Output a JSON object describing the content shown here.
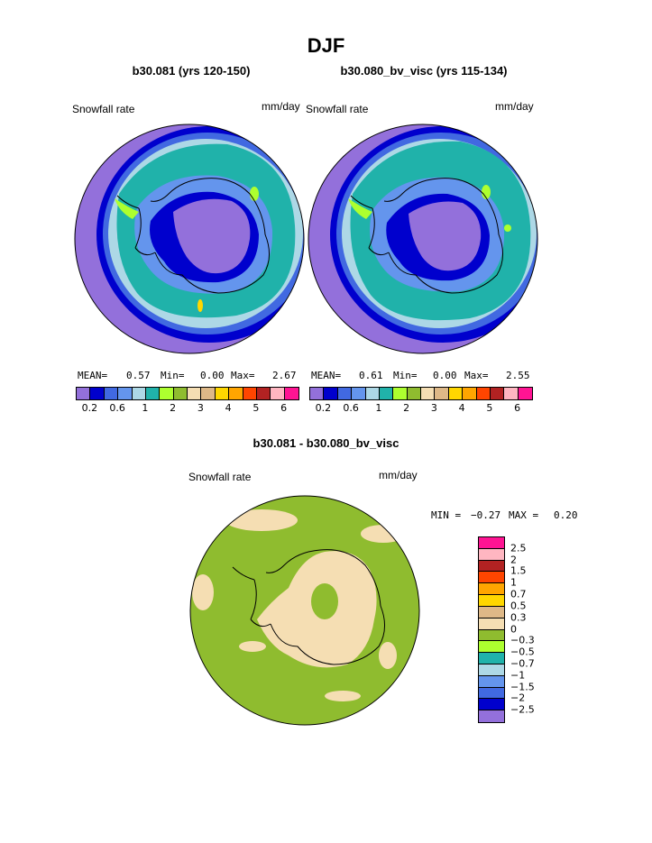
{
  "page": {
    "title": "DJF",
    "diff_title": "b30.081 - b30.080_bv_visc"
  },
  "panels": [
    {
      "title": "b30.081 (yrs 120-150)",
      "field_label": "Snowfall rate",
      "units": "mm/day",
      "stats": {
        "mean_label": "MEAN=",
        "mean": "0.57",
        "min_label": "Min=",
        "min": "0.00",
        "max_label": "Max=",
        "max": "2.67"
      }
    },
    {
      "title": "b30.080_bv_visc (yrs 115-134)",
      "field_label": "Snowfall rate",
      "units": "mm/day",
      "stats": {
        "mean_label": "MEAN=",
        "mean": "0.61",
        "min_label": "Min=",
        "min": "0.00",
        "max_label": "Max=",
        "max": "2.55"
      }
    }
  ],
  "colorbar": {
    "colors": [
      "#9370db",
      "#0000cd",
      "#4169e1",
      "#6495ed",
      "#add8e6",
      "#20b2aa",
      "#adff2f",
      "#8fbc2f",
      "#f5deb3",
      "#deb887",
      "#ffd700",
      "#ffa500",
      "#ff4500",
      "#b22222",
      "#ffb6c1",
      "#ff1493"
    ],
    "tick_labels": [
      "0.2",
      "0.6",
      "1",
      "2",
      "3",
      "4",
      "5",
      "6"
    ]
  },
  "diff_panel": {
    "field_label": "Snowfall rate",
    "units": "mm/day",
    "min_label": "MIN =",
    "min": "−0.27",
    "max_label": "MAX =",
    "max": "0.20",
    "colors": [
      "#ff1493",
      "#ffb6c1",
      "#b22222",
      "#ff4500",
      "#ffa500",
      "#ffd700",
      "#deb887",
      "#f5deb3",
      "#8fbc2f",
      "#adff2f",
      "#20b2aa",
      "#add8e6",
      "#6495ed",
      "#4169e1",
      "#0000cd",
      "#9370db"
    ],
    "tick_labels": [
      "2.5",
      "2",
      "1.5",
      "1",
      "0.7",
      "0.5",
      "0.3",
      "0",
      "−0.3",
      "−0.5",
      "−0.7",
      "−1",
      "−1.5",
      "−2",
      "−2.5"
    ]
  }
}
